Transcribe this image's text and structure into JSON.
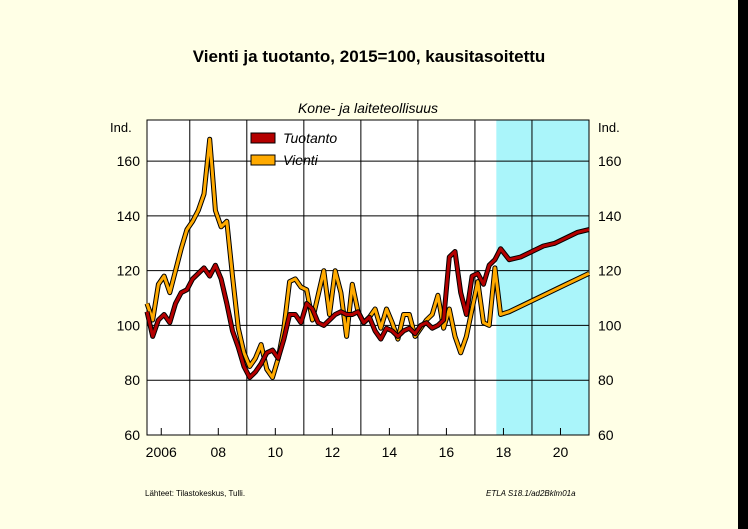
{
  "chart_data": {
    "type": "line",
    "title": "Vienti ja tuotanto, 2015=100, kausitasoitettu",
    "subtitle": "Kone- ja laiteteollisuus",
    "ylabel_left": "Ind.",
    "ylabel_right": "Ind.",
    "ylim": [
      60,
      175
    ],
    "y_ticks": [
      60,
      80,
      100,
      120,
      140,
      160
    ],
    "y_tick_labels": [
      "60",
      "80",
      "100",
      "120",
      "140",
      "160"
    ],
    "xlim": [
      2005.5,
      2021
    ],
    "x_ticks": [
      2006,
      2008,
      2010,
      2012,
      2014,
      2016,
      2018,
      2020
    ],
    "x_tick_labels": [
      "2006",
      "08",
      "10",
      "12",
      "14",
      "16",
      "18",
      "20"
    ],
    "gridlines": true,
    "forecast_start": 2017.75,
    "forecast_shade_color": "#aaf5fa",
    "legend_position": "top-left",
    "source": "Lähteet:  Tilastokeskus, Tulli.",
    "code": "ETLA S18.1/ad2Bklm01a",
    "series": [
      {
        "name": "Tuotanto",
        "color": "#b40000",
        "x": [
          2005.5,
          2005.7,
          2005.9,
          2006.1,
          2006.3,
          2006.5,
          2006.7,
          2006.9,
          2007.1,
          2007.3,
          2007.5,
          2007.7,
          2007.9,
          2008.1,
          2008.3,
          2008.5,
          2008.7,
          2008.9,
          2009.1,
          2009.3,
          2009.5,
          2009.7,
          2009.9,
          2010.1,
          2010.3,
          2010.5,
          2010.7,
          2010.9,
          2011.1,
          2011.3,
          2011.5,
          2011.7,
          2011.9,
          2012.1,
          2012.3,
          2012.5,
          2012.7,
          2012.9,
          2013.1,
          2013.3,
          2013.5,
          2013.7,
          2013.9,
          2014.1,
          2014.3,
          2014.5,
          2014.7,
          2014.9,
          2015.1,
          2015.3,
          2015.5,
          2015.7,
          2015.9,
          2016.1,
          2016.3,
          2016.5,
          2016.7,
          2016.9,
          2017.1,
          2017.3,
          2017.5,
          2017.7,
          2017.9,
          2018.2,
          2018.6,
          2019.0,
          2019.4,
          2019.8,
          2020.2,
          2020.6,
          2021.0
        ],
        "values": [
          105,
          96,
          102,
          104,
          101,
          108,
          112,
          113,
          117,
          119,
          121,
          118,
          122,
          117,
          108,
          98,
          92,
          85,
          81,
          83,
          86,
          90,
          91,
          88,
          95,
          104,
          104,
          101,
          108,
          106,
          101,
          100,
          102,
          104,
          105,
          104,
          104,
          105,
          101,
          103,
          98,
          95,
          99,
          98,
          96,
          98,
          99,
          97,
          100,
          101,
          99,
          100,
          102,
          125,
          127,
          112,
          104,
          118,
          119,
          115,
          122,
          124,
          128,
          124,
          125,
          127,
          129,
          130,
          132,
          134,
          135
        ]
      },
      {
        "name": "Vienti",
        "color": "#ffaa00",
        "x": [
          2005.5,
          2005.7,
          2005.9,
          2006.1,
          2006.3,
          2006.5,
          2006.7,
          2006.9,
          2007.1,
          2007.3,
          2007.5,
          2007.7,
          2007.9,
          2008.1,
          2008.3,
          2008.5,
          2008.7,
          2008.9,
          2009.1,
          2009.3,
          2009.5,
          2009.7,
          2009.9,
          2010.1,
          2010.3,
          2010.5,
          2010.7,
          2010.9,
          2011.1,
          2011.3,
          2011.5,
          2011.7,
          2011.9,
          2012.1,
          2012.3,
          2012.5,
          2012.7,
          2012.9,
          2013.1,
          2013.3,
          2013.5,
          2013.7,
          2013.9,
          2014.1,
          2014.3,
          2014.5,
          2014.7,
          2014.9,
          2015.1,
          2015.3,
          2015.5,
          2015.7,
          2015.9,
          2016.1,
          2016.3,
          2016.5,
          2016.7,
          2016.9,
          2017.1,
          2017.3,
          2017.5,
          2017.7,
          2017.9,
          2018.2,
          2018.6,
          2019.0,
          2019.4,
          2019.8,
          2020.2,
          2020.6,
          2021.0
        ],
        "values": [
          108,
          102,
          115,
          118,
          112,
          120,
          128,
          135,
          138,
          142,
          148,
          168,
          142,
          136,
          138,
          118,
          99,
          90,
          85,
          88,
          93,
          84,
          81,
          88,
          99,
          116,
          117,
          114,
          113,
          102,
          111,
          120,
          104,
          120,
          112,
          96,
          115,
          105,
          101,
          103,
          106,
          99,
          106,
          101,
          95,
          104,
          104,
          96,
          99,
          102,
          104,
          111,
          99,
          106,
          96,
          90,
          96,
          106,
          116,
          101,
          100,
          121,
          104,
          105,
          107,
          109,
          111,
          113,
          115,
          117,
          119
        ]
      }
    ]
  }
}
